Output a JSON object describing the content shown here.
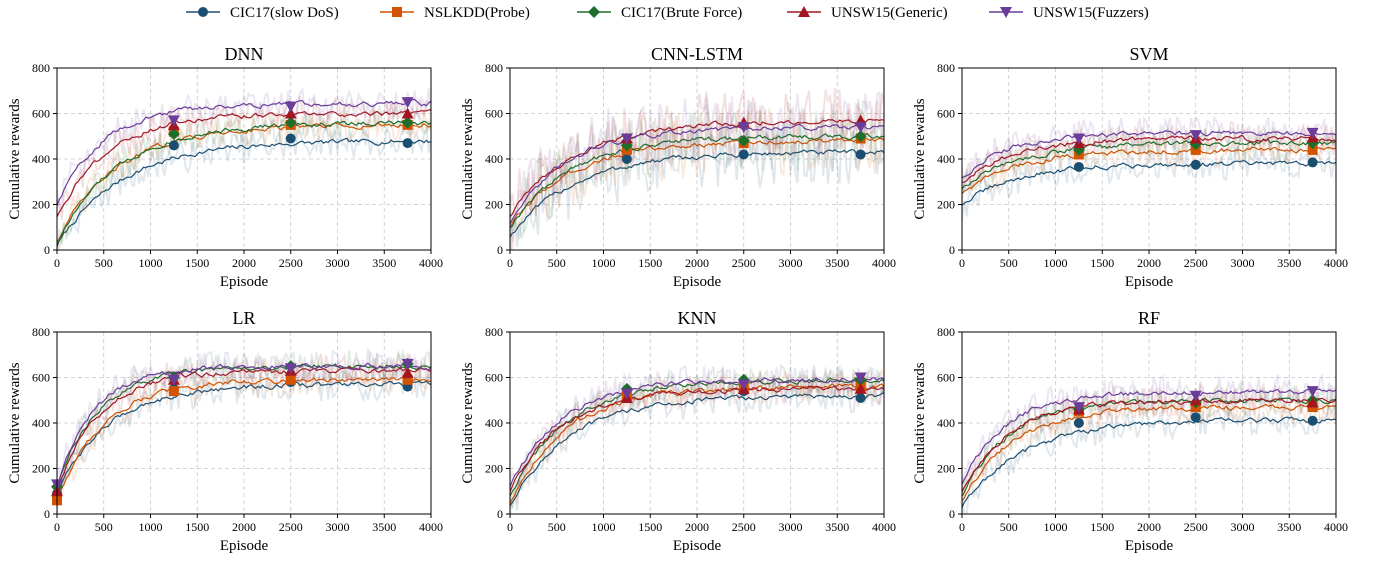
{
  "legend": [
    {
      "name": "CIC17(slow DoS)",
      "color": "#1b4f72",
      "marker": "circle"
    },
    {
      "name": "NSLKDD(Probe)",
      "color": "#d35400",
      "marker": "square"
    },
    {
      "name": "CIC17(Brute Force)",
      "color": "#1e6e2b",
      "marker": "diamond"
    },
    {
      "name": "UNSW15(Generic)",
      "color": "#a31621",
      "marker": "triangle-up"
    },
    {
      "name": "UNSW15(Fuzzers)",
      "color": "#6a3d9a",
      "marker": "triangle-down"
    }
  ],
  "chart_data": [
    {
      "type": "line",
      "title": "DNN",
      "xlabel": "Episode",
      "ylabel": "Cumulative rewards",
      "xlim": [
        0,
        4000
      ],
      "ylim": [
        0,
        800
      ],
      "xticks": [
        "0",
        "500",
        "1000",
        "1500",
        "2000",
        "2500",
        "3000",
        "3500",
        "4000"
      ],
      "yticks": [
        "0",
        "200",
        "400",
        "600",
        "800"
      ],
      "grid": true,
      "marker_x": [
        1250,
        2500,
        3750
      ],
      "series": [
        {
          "name": "CIC17(slow DoS)",
          "start": 20,
          "plateau": 480,
          "rise": 700,
          "marker_values": [
            460,
            490,
            470
          ]
        },
        {
          "name": "NSLKDD(Probe)",
          "start": 40,
          "plateau": 550,
          "rise": 650,
          "marker_values": [
            520,
            550,
            550
          ]
        },
        {
          "name": "CIC17(Brute Force)",
          "start": 30,
          "plateau": 560,
          "rise": 650,
          "marker_values": [
            510,
            560,
            560
          ]
        },
        {
          "name": "UNSW15(Generic)",
          "start": 150,
          "plateau": 600,
          "rise": 550,
          "marker_values": [
            550,
            600,
            600
          ]
        },
        {
          "name": "UNSW15(Fuzzers)",
          "start": 200,
          "plateau": 645,
          "rise": 500,
          "marker_values": [
            570,
            630,
            650
          ]
        }
      ]
    },
    {
      "type": "line",
      "title": "CNN-LSTM",
      "xlabel": "Episode",
      "ylabel": "Cumulative rewards",
      "xlim": [
        0,
        4000
      ],
      "ylim": [
        0,
        800
      ],
      "xticks": [
        "0",
        "500",
        "1000",
        "1500",
        "2000",
        "2500",
        "3000",
        "3500",
        "4000"
      ],
      "yticks": [
        "0",
        "200",
        "400",
        "600",
        "800"
      ],
      "grid": true,
      "marker_x": [
        1250,
        2500,
        3750
      ],
      "series": [
        {
          "name": "CIC17(slow DoS)",
          "start": 60,
          "plateau": 430,
          "rise": 700,
          "marker_values": [
            400,
            420,
            420
          ]
        },
        {
          "name": "NSLKDD(Probe)",
          "start": 100,
          "plateau": 480,
          "rise": 650,
          "marker_values": [
            440,
            470,
            490
          ]
        },
        {
          "name": "CIC17(Brute Force)",
          "start": 100,
          "plateau": 500,
          "rise": 650,
          "marker_values": [
            460,
            480,
            500
          ]
        },
        {
          "name": "UNSW15(Generic)",
          "start": 150,
          "plateau": 570,
          "rise": 700,
          "marker_values": [
            490,
            560,
            570
          ]
        },
        {
          "name": "UNSW15(Fuzzers)",
          "start": 120,
          "plateau": 540,
          "rise": 600,
          "marker_values": [
            490,
            540,
            540
          ]
        }
      ]
    },
    {
      "type": "line",
      "title": "SVM",
      "xlabel": "Episode",
      "ylabel": "Cumulative rewards",
      "xlim": [
        0,
        4000
      ],
      "ylim": [
        0,
        800
      ],
      "xticks": [
        "0",
        "500",
        "1000",
        "1500",
        "2000",
        "2500",
        "3000",
        "3500",
        "4000"
      ],
      "yticks": [
        "0",
        "200",
        "400",
        "600",
        "800"
      ],
      "grid": true,
      "marker_x": [
        1250,
        2500,
        3750
      ],
      "series": [
        {
          "name": "CIC17(slow DoS)",
          "start": 200,
          "plateau": 380,
          "rise": 600,
          "marker_values": [
            365,
            375,
            385
          ]
        },
        {
          "name": "NSLKDD(Probe)",
          "start": 250,
          "plateau": 440,
          "rise": 600,
          "marker_values": [
            420,
            440,
            440
          ]
        },
        {
          "name": "CIC17(Brute Force)",
          "start": 270,
          "plateau": 470,
          "rise": 600,
          "marker_values": [
            440,
            465,
            470
          ]
        },
        {
          "name": "UNSW15(Generic)",
          "start": 300,
          "plateau": 490,
          "rise": 550,
          "marker_values": [
            470,
            490,
            495
          ]
        },
        {
          "name": "UNSW15(Fuzzers)",
          "start": 320,
          "plateau": 515,
          "rise": 500,
          "marker_values": [
            490,
            505,
            515
          ]
        }
      ]
    },
    {
      "type": "line",
      "title": "LR",
      "xlabel": "Episode",
      "ylabel": "Cumulative rewards",
      "xlim": [
        0,
        4000
      ],
      "ylim": [
        0,
        800
      ],
      "xticks": [
        "0",
        "500",
        "1000",
        "1500",
        "2000",
        "2500",
        "3000",
        "3500",
        "4000"
      ],
      "yticks": [
        "0",
        "200",
        "400",
        "600",
        "800"
      ],
      "grid": true,
      "marker_x": [
        0,
        1250,
        2500,
        3750
      ],
      "series": [
        {
          "name": "CIC17(slow DoS)",
          "start": 90,
          "plateau": 570,
          "rise": 550,
          "marker_values": [
            90,
            550,
            580,
            560
          ]
        },
        {
          "name": "NSLKDD(Probe)",
          "start": 60,
          "plateau": 590,
          "rise": 500,
          "marker_values": [
            60,
            540,
            590,
            590
          ]
        },
        {
          "name": "CIC17(Brute Force)",
          "start": 120,
          "plateau": 650,
          "rise": 450,
          "marker_values": [
            120,
            600,
            650,
            660
          ]
        },
        {
          "name": "UNSW15(Generic)",
          "start": 100,
          "plateau": 630,
          "rise": 450,
          "marker_values": [
            100,
            590,
            630,
            620
          ]
        },
        {
          "name": "UNSW15(Fuzzers)",
          "start": 130,
          "plateau": 650,
          "rise": 400,
          "marker_values": [
            130,
            590,
            640,
            660
          ]
        }
      ]
    },
    {
      "type": "line",
      "title": "KNN",
      "xlabel": "Episode",
      "ylabel": "Cumulative rewards",
      "xlim": [
        0,
        4000
      ],
      "ylim": [
        0,
        800
      ],
      "xticks": [
        "0",
        "500",
        "1000",
        "1500",
        "2000",
        "2500",
        "3000",
        "3500",
        "4000"
      ],
      "yticks": [
        "0",
        "200",
        "400",
        "600",
        "800"
      ],
      "grid": true,
      "marker_x": [
        1250,
        2500,
        3750
      ],
      "series": [
        {
          "name": "CIC17(slow DoS)",
          "start": 40,
          "plateau": 520,
          "rise": 650,
          "marker_values": [
            510,
            540,
            510
          ]
        },
        {
          "name": "NSLKDD(Probe)",
          "start": 50,
          "plateau": 560,
          "rise": 600,
          "marker_values": [
            520,
            560,
            560
          ]
        },
        {
          "name": "CIC17(Brute Force)",
          "start": 80,
          "plateau": 590,
          "rise": 600,
          "marker_values": [
            550,
            590,
            590
          ]
        },
        {
          "name": "UNSW15(Generic)",
          "start": 100,
          "plateau": 550,
          "rise": 550,
          "marker_values": [
            510,
            550,
            550
          ]
        },
        {
          "name": "UNSW15(Fuzzers)",
          "start": 120,
          "plateau": 590,
          "rise": 550,
          "marker_values": [
            530,
            570,
            600
          ]
        }
      ]
    },
    {
      "type": "line",
      "title": "RF",
      "xlabel": "Episode",
      "ylabel": "Cumulative rewards",
      "xlim": [
        0,
        4000
      ],
      "ylim": [
        0,
        800
      ],
      "xticks": [
        "0",
        "500",
        "1000",
        "1500",
        "2000",
        "2500",
        "3000",
        "3500",
        "4000"
      ],
      "yticks": [
        "0",
        "200",
        "400",
        "600",
        "800"
      ],
      "grid": true,
      "marker_x": [
        1250,
        2500,
        3750
      ],
      "series": [
        {
          "name": "CIC17(slow DoS)",
          "start": 30,
          "plateau": 415,
          "rise": 650,
          "marker_values": [
            400,
            425,
            410
          ]
        },
        {
          "name": "NSLKDD(Probe)",
          "start": 60,
          "plateau": 470,
          "rise": 550,
          "marker_values": [
            450,
            470,
            470
          ]
        },
        {
          "name": "CIC17(Brute Force)",
          "start": 80,
          "plateau": 500,
          "rise": 500,
          "marker_values": [
            460,
            490,
            500
          ]
        },
        {
          "name": "UNSW15(Generic)",
          "start": 100,
          "plateau": 500,
          "rise": 500,
          "marker_values": [
            460,
            500,
            490
          ]
        },
        {
          "name": "UNSW15(Fuzzers)",
          "start": 130,
          "plateau": 535,
          "rise": 450,
          "marker_values": [
            470,
            520,
            540
          ]
        }
      ]
    }
  ]
}
